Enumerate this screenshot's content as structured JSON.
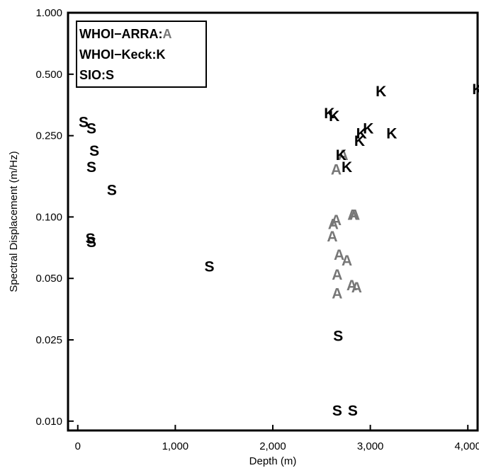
{
  "chart_data": {
    "type": "scatter",
    "xlabel": "Depth (m)",
    "ylabel": "Spectral Displacement (m/Hz)",
    "xlim": [
      -100,
      4100
    ],
    "ylim": [
      0.009,
      1.0
    ],
    "yscale": "log",
    "x_ticks": [
      0,
      1000,
      2000,
      3000,
      4000
    ],
    "x_tick_labels": [
      "0",
      "1,000",
      "2,000",
      "3,000",
      "4,000"
    ],
    "y_ticks": [
      0.01,
      0.025,
      0.05,
      0.1,
      0.25,
      0.5,
      1.0
    ],
    "y_tick_labels": [
      "0.010",
      "0.025",
      "0.050",
      "0.100",
      "0.250",
      "0.500",
      "1.000"
    ],
    "grid": false,
    "legend_position": "top-left",
    "legend": [
      {
        "label": "WHOI−ARRA:",
        "marker": "A",
        "color": "#777777"
      },
      {
        "label": "WHOI−Keck:",
        "marker": "K",
        "color": "#000000"
      },
      {
        "label": "SIO:",
        "marker": "S",
        "color": "#000000"
      }
    ],
    "series": [
      {
        "name": "WHOI−ARRA",
        "marker": "A",
        "color": "#777777",
        "points": [
          [
            2720,
            0.2
          ],
          [
            2650,
            0.17
          ],
          [
            2620,
            0.092
          ],
          [
            2650,
            0.096
          ],
          [
            2610,
            0.08
          ],
          [
            2820,
            0.102
          ],
          [
            2840,
            0.102
          ],
          [
            2680,
            0.065
          ],
          [
            2760,
            0.061
          ],
          [
            2660,
            0.052
          ],
          [
            2810,
            0.046
          ],
          [
            2860,
            0.045
          ],
          [
            2660,
            0.042
          ]
        ]
      },
      {
        "name": "WHOI−Keck",
        "marker": "K",
        "color": "#000000",
        "points": [
          [
            4100,
            0.42
          ],
          [
            3110,
            0.41
          ],
          [
            2580,
            0.32
          ],
          [
            2630,
            0.31
          ],
          [
            2980,
            0.27
          ],
          [
            2910,
            0.255
          ],
          [
            3220,
            0.255
          ],
          [
            2890,
            0.235
          ],
          [
            2700,
            0.2
          ],
          [
            2760,
            0.175
          ]
        ]
      },
      {
        "name": "SIO",
        "marker": "S",
        "color": "#000000",
        "points": [
          [
            60,
            0.29
          ],
          [
            140,
            0.27
          ],
          [
            170,
            0.21
          ],
          [
            140,
            0.175
          ],
          [
            350,
            0.135
          ],
          [
            130,
            0.078
          ],
          [
            140,
            0.075
          ],
          [
            1350,
            0.057
          ],
          [
            2670,
            0.026
          ],
          [
            2660,
            0.0112
          ],
          [
            2820,
            0.0112
          ]
        ]
      }
    ]
  }
}
